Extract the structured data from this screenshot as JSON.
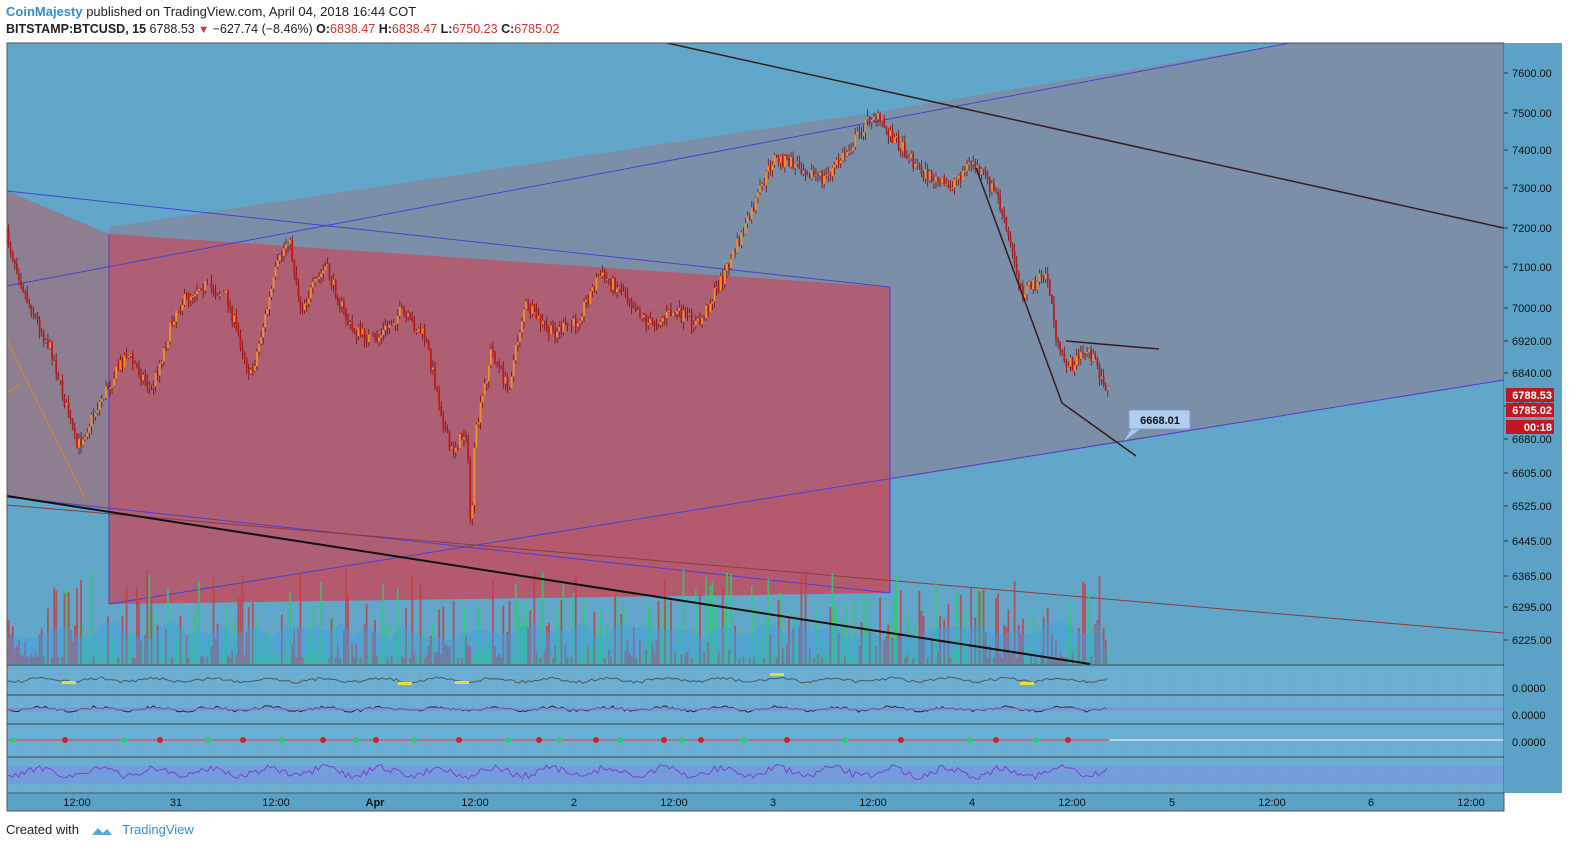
{
  "header": {
    "author": "CoinMajesty",
    "published_text": "published on TradingView.com, April 04, 2018 16:44 COT",
    "symbol": "BITSTAMP:BTCUSD, 15",
    "last_price": "6788.53",
    "change": "−627.74 (−8.46%)",
    "open_label": "O:",
    "open": "6838.47",
    "high_label": "H:",
    "high": "6838.47",
    "low_label": "L:",
    "low": "6750.23",
    "close_label": "C:",
    "close": "6785.02"
  },
  "footer": {
    "created_with": "Created with",
    "brand": "TradingView"
  },
  "colors": {
    "background": "#62a7c9",
    "channel_fill": "#8f7b8e",
    "red_box": "#b5596d",
    "candle_up": "#f0902a",
    "candle_down": "#c01818",
    "volume_up": "#2ecc71",
    "volume_down": "#c0404a",
    "price_badge": "#c0181f"
  },
  "chart_data": {
    "type": "candlestick",
    "y_ticks": [
      7600,
      7500,
      7400,
      7300,
      7200,
      7100,
      7000,
      6920,
      6840,
      6760,
      6680,
      6605,
      6525,
      6445,
      6365,
      6295,
      6225
    ],
    "y_tick_labels": [
      "7600.00",
      "7500.00",
      "7400.00",
      "7300.00",
      "7200.00",
      "7100.00",
      "7000.00",
      "6920.00",
      "6840.00",
      "6760.00",
      "6680.00",
      "6605.00",
      "6525.00",
      "6445.00",
      "6365.00",
      "6295.00",
      "6225.00"
    ],
    "x_tick_labels": [
      "12:00",
      "31",
      "12:00",
      "Apr",
      "12:00",
      "2",
      "12:00",
      "3",
      "12:00",
      "4",
      "12:00",
      "5",
      "12:00",
      "6",
      "12:00"
    ],
    "price_path": [
      [
        "Mar 30 03:30",
        7180
      ],
      [
        "Mar 30 06:00",
        7020
      ],
      [
        "Mar 30 09:00",
        6890
      ],
      [
        "Mar 30 12:00",
        6660
      ],
      [
        "Mar 30 15:00",
        6780
      ],
      [
        "Mar 30 18:00",
        6890
      ],
      [
        "Mar 30 21:00",
        6800
      ],
      [
        "Mar 31 00:00",
        7000
      ],
      [
        "Mar 31 03:00",
        7060
      ],
      [
        "Mar 31 06:00",
        7030
      ],
      [
        "Mar 31 09:00",
        6830
      ],
      [
        "Mar 31 12:00",
        7090
      ],
      [
        "Mar 31 13:30",
        7180
      ],
      [
        "Mar 31 15:00",
        7000
      ],
      [
        "Mar 31 18:00",
        7100
      ],
      [
        "Mar 31 21:00",
        6950
      ],
      [
        "Apr 01 00:00",
        6920
      ],
      [
        "Apr 01 03:00",
        6990
      ],
      [
        "Apr 01 06:00",
        6930
      ],
      [
        "Apr 01 09:00",
        6650
      ],
      [
        "Apr 01 11:00",
        6700
      ],
      [
        "Apr 01 11:30",
        6460
      ],
      [
        "Apr 01 12:00",
        6680
      ],
      [
        "Apr 01 14:00",
        6900
      ],
      [
        "Apr 01 16:00",
        6800
      ],
      [
        "Apr 01 18:00",
        7010
      ],
      [
        "Apr 01 21:00",
        6940
      ],
      [
        "Apr 02 00:00",
        6960
      ],
      [
        "Apr 02 03:00",
        7080
      ],
      [
        "Apr 02 06:00",
        7040
      ],
      [
        "Apr 02 09:00",
        6960
      ],
      [
        "Apr 02 12:00",
        6990
      ],
      [
        "Apr 02 15:00",
        6960
      ],
      [
        "Apr 02 18:00",
        7080
      ],
      [
        "Apr 02 21:00",
        7220
      ],
      [
        "Apr 03 00:00",
        7380
      ],
      [
        "Apr 03 03:00",
        7360
      ],
      [
        "Apr 03 06:00",
        7320
      ],
      [
        "Apr 03 09:00",
        7400
      ],
      [
        "Apr 03 12:00",
        7500
      ],
      [
        "Apr 03 15:00",
        7420
      ],
      [
        "Apr 03 18:00",
        7340
      ],
      [
        "Apr 03 21:00",
        7300
      ],
      [
        "Apr 04 00:00",
        7370
      ],
      [
        "Apr 04 03:00",
        7280
      ],
      [
        "Apr 04 06:00",
        7040
      ],
      [
        "Apr 04 09:00",
        7080
      ],
      [
        "Apr 04 10:30",
        6880
      ],
      [
        "Apr 04 12:00",
        6860
      ],
      [
        "Apr 04 14:00",
        6900
      ],
      [
        "Apr 04 16:30",
        6790
      ]
    ],
    "annotations": [
      {
        "text": "6668.01"
      }
    ],
    "price_badges": [
      "6788.53",
      "6785.02",
      "00:18"
    ],
    "indicator_panels": [
      {
        "value_label": "0.0000"
      },
      {
        "value_label": "0.0000"
      },
      {
        "value_label": "0.0000"
      }
    ],
    "legend": "none",
    "grid": false
  }
}
